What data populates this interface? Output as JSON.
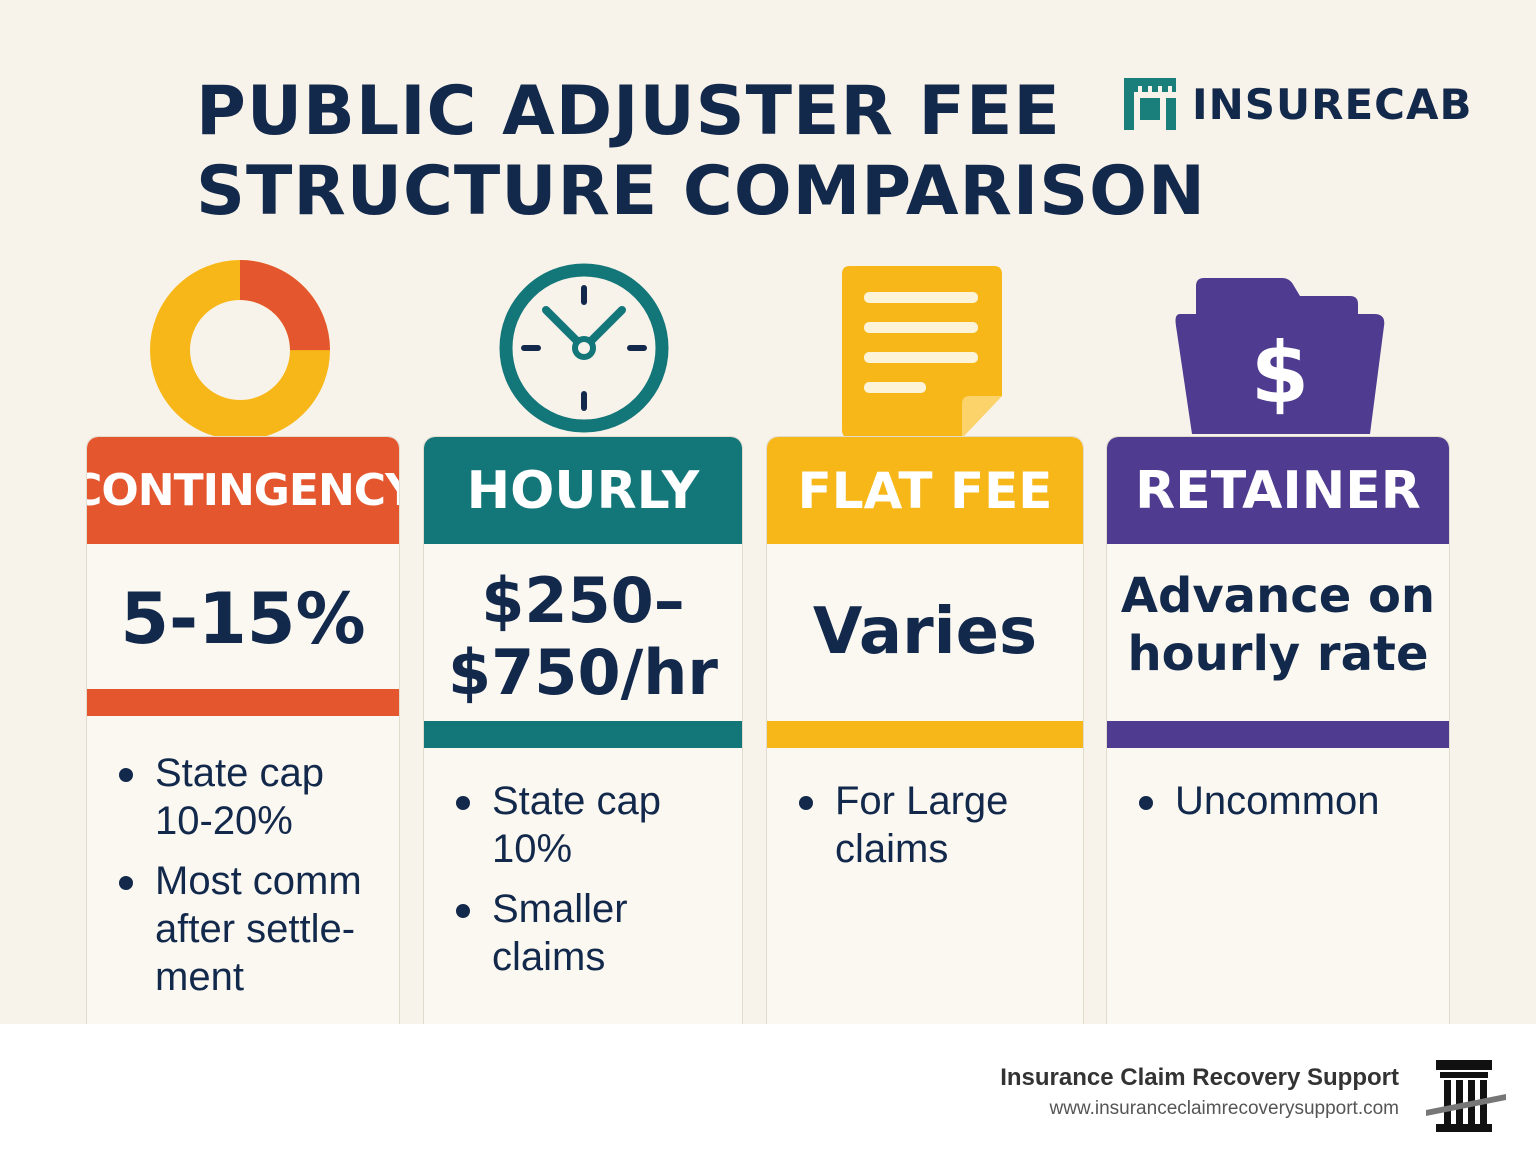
{
  "title": {
    "line1": "PUBLIC ADJUSTER FEE",
    "line2": "STRUCTURE COMPARISON"
  },
  "brand": {
    "name": "INSURECAB",
    "logo_color": "#1a7f7a"
  },
  "cards": [
    {
      "header": "CONTINGENCY",
      "color": "#e4572e",
      "icon": "donut-chart-icon",
      "rate_lines": [
        "5-15%"
      ],
      "bullets": [
        "State cap 10-20%",
        "Most comm after settle-ment"
      ]
    },
    {
      "header": "HOURLY",
      "color": "#137679",
      "icon": "clock-icon",
      "rate_lines": [
        "$250–",
        "$750/hr"
      ],
      "bullets": [
        "State cap 10%",
        "Smaller claims"
      ]
    },
    {
      "header": "FLAT FEE",
      "color": "#f7b718",
      "icon": "document-icon",
      "rate_lines": [
        "Varies"
      ],
      "bullets": [
        "For Large claims"
      ]
    },
    {
      "header": "RETAINER",
      "color": "#4f3b8f",
      "icon": "dollar-folder-icon",
      "rate_lines": [
        "Advance on",
        "hourly rate"
      ],
      "bullets": [
        "Uncommon"
      ]
    }
  ],
  "footer": {
    "name": "Insurance Claim Recovery Support",
    "url": "www.insuranceclaimrecoverysupport.com",
    "icon": "pillar-building-icon"
  }
}
